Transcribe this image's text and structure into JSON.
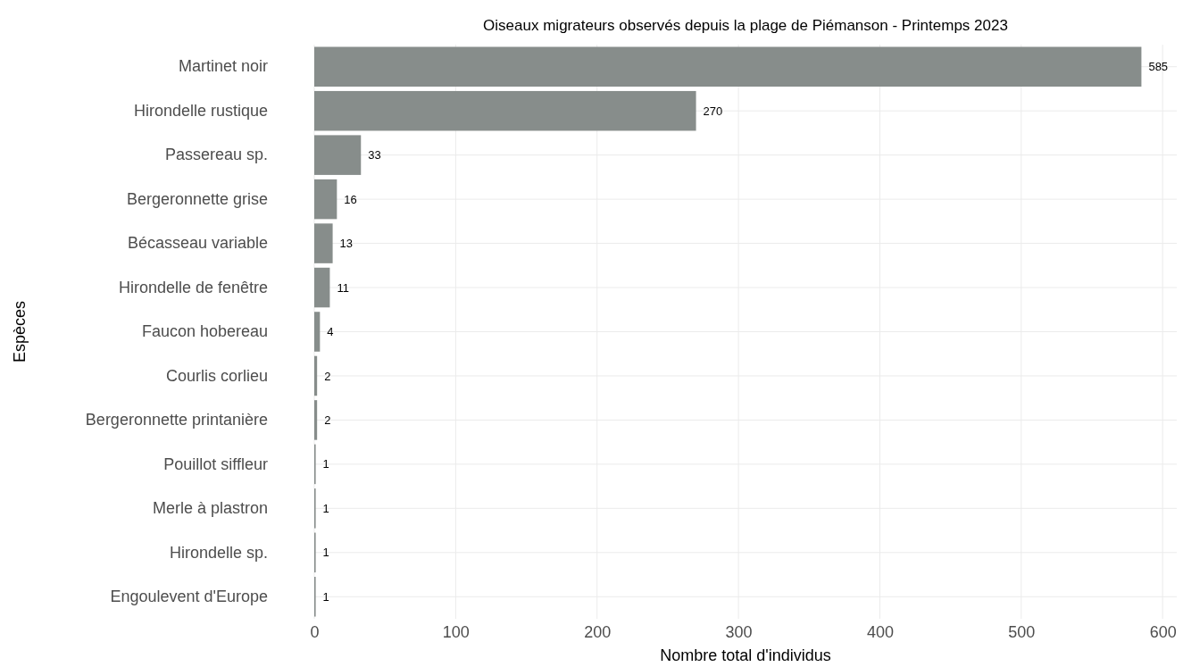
{
  "chart_data": {
    "type": "bar",
    "orientation": "horizontal",
    "title": "Oiseaux migrateurs observés depuis la plage de Piémanson - Printemps 2023",
    "xlabel": "Nombre total d'individus",
    "ylabel": "Espèces",
    "categories": [
      "Martinet noir",
      "Hirondelle rustique",
      "Passereau sp.",
      "Bergeronnette grise",
      "Bécasseau variable",
      "Hirondelle de fenêtre",
      "Faucon hobereau",
      "Courlis corlieu",
      "Bergeronnette printanière",
      "Pouillot siffleur",
      "Merle à plastron",
      "Hirondelle sp.",
      "Engoulevent d'Europe"
    ],
    "values": [
      585,
      270,
      33,
      16,
      13,
      11,
      4,
      2,
      2,
      1,
      1,
      1,
      1
    ],
    "color": "#878d8b",
    "xlim": [
      0,
      610
    ],
    "xticks": [
      0,
      100,
      200,
      300,
      400,
      500,
      600
    ],
    "grid": true,
    "data_labels": true
  }
}
